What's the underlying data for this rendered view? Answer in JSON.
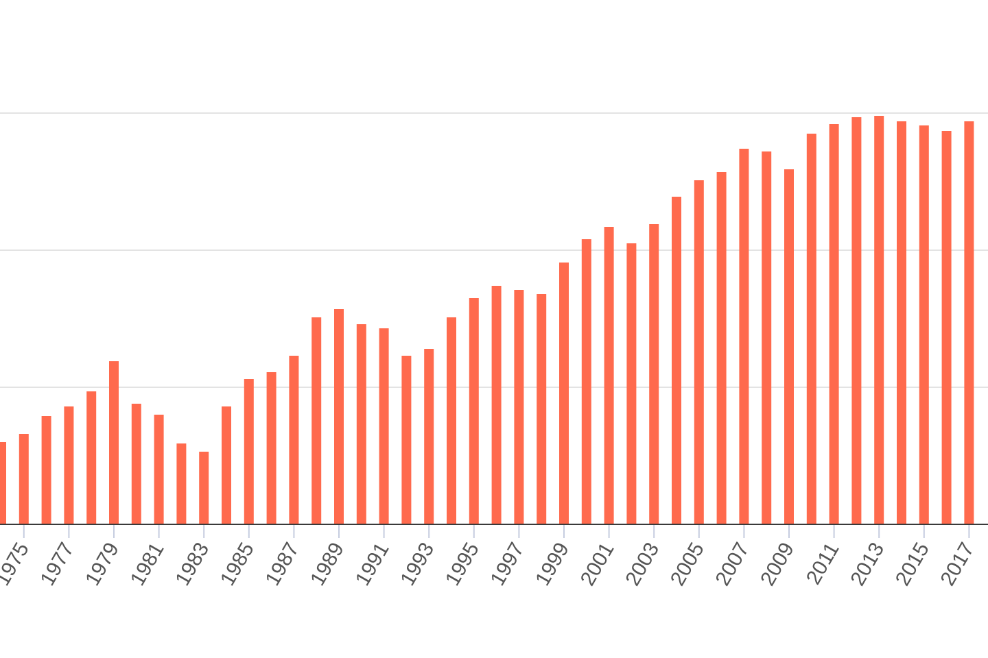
{
  "chart_data": {
    "type": "bar",
    "title": "",
    "xlabel": "",
    "ylabel": "",
    "x_range": [
      1974,
      2018
    ],
    "ylim": [
      0,
      3
    ],
    "y_gridlines": [
      1,
      2,
      3
    ],
    "y_axis_labels_visible": false,
    "grid": true,
    "legend": "none",
    "bar_color": "#ff6a4d",
    "categories": [
      "1974",
      "1975",
      "1976",
      "1977",
      "1978",
      "1979",
      "1980",
      "1981",
      "1982",
      "1983",
      "1984",
      "1985",
      "1986",
      "1987",
      "1988",
      "1989",
      "1990",
      "1991",
      "1992",
      "1993",
      "1994",
      "1995",
      "1996",
      "1997",
      "1998",
      "1999",
      "2000",
      "2001",
      "2002",
      "2003",
      "2004",
      "2005",
      "2006",
      "2007",
      "2008",
      "2009",
      "2010",
      "2011",
      "2012",
      "2013",
      "2014",
      "2015",
      "2016",
      "2017"
    ],
    "values": [
      0.6,
      0.66,
      0.79,
      0.86,
      0.97,
      1.19,
      0.88,
      0.8,
      0.59,
      0.53,
      0.86,
      1.06,
      1.11,
      1.23,
      1.51,
      1.57,
      1.46,
      1.43,
      1.23,
      1.28,
      1.51,
      1.65,
      1.74,
      1.71,
      1.68,
      1.91,
      2.08,
      2.17,
      2.05,
      2.19,
      2.39,
      2.51,
      2.57,
      2.74,
      2.72,
      2.59,
      2.85,
      2.92,
      2.97,
      2.98,
      2.94,
      2.91,
      2.87,
      2.94
    ],
    "tick_labels": [
      "1975",
      "1977",
      "1979",
      "1981",
      "1983",
      "1985",
      "1987",
      "1989",
      "1991",
      "1993",
      "1995",
      "1997",
      "1999",
      "2001",
      "2003",
      "2005",
      "2007",
      "2009",
      "2011",
      "2013",
      "2015",
      "2017"
    ]
  }
}
